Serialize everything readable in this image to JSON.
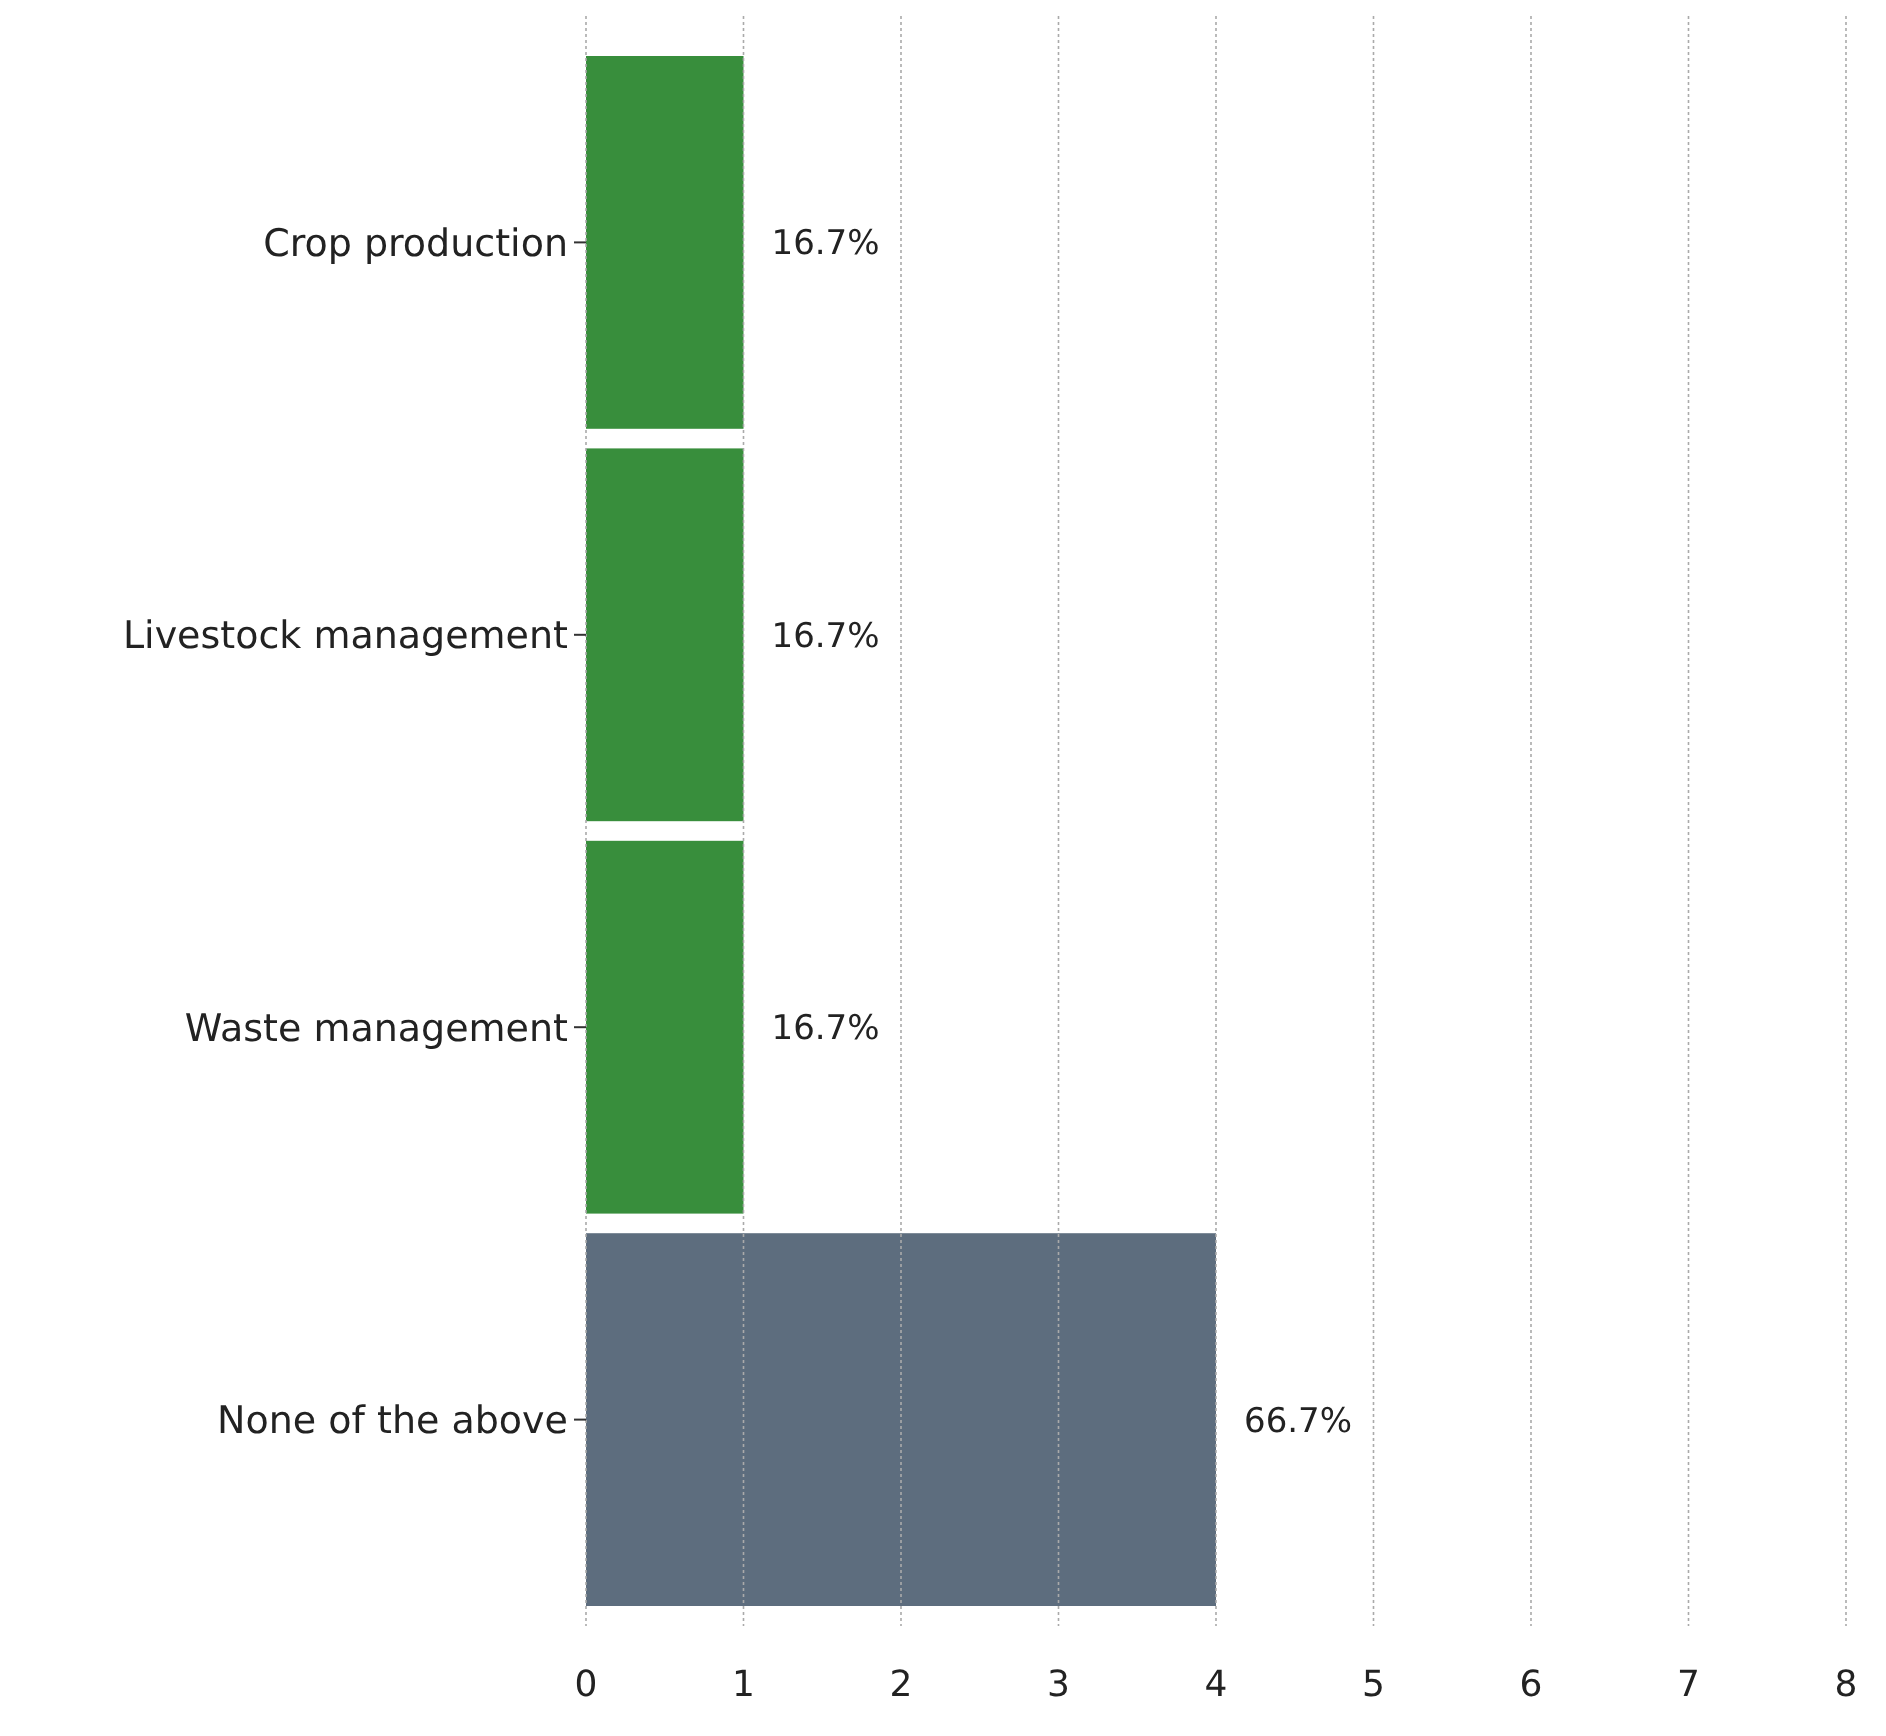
{
  "chart_data": {
    "type": "bar",
    "orientation": "horizontal",
    "categories": [
      "Crop production",
      "Livestock management",
      "Waste management",
      "None of the above"
    ],
    "values": [
      1,
      1,
      1,
      4
    ],
    "colors": [
      "#388e3c",
      "#388e3c",
      "#388e3c",
      "#5d6d7e"
    ],
    "annotations": [
      "16.7%",
      "16.7%",
      "16.7%",
      "66.7%"
    ],
    "xlim": [
      0,
      8
    ],
    "xticks": [
      0,
      1,
      2,
      3,
      4,
      5,
      6,
      7,
      8
    ],
    "grid": "x"
  }
}
